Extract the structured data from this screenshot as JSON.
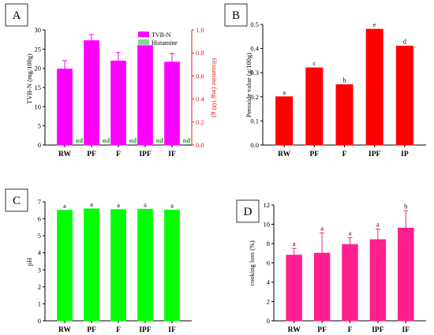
{
  "chart_data": [
    {
      "panel": "A",
      "type": "bar",
      "categories": [
        "RW",
        "PF",
        "F",
        "IPF",
        "IF"
      ],
      "ylabel": "TVB-N (mg/100g)",
      "y2label": "Histamine (mg/100 g)",
      "ylim": [
        0,
        30
      ],
      "y2lim": [
        0,
        1.0
      ],
      "yticks": [
        "0",
        "5",
        "10",
        "15",
        "20",
        "25",
        "30"
      ],
      "y2ticks": [
        "0.0",
        "0.2",
        "0.4",
        "0.6",
        "0.8",
        "1.0"
      ],
      "legend_position": "top-right",
      "series": [
        {
          "name": "TVB-N",
          "color": "#ff00ff",
          "values": [
            19.8,
            27.2,
            21.9,
            25.9,
            21.6
          ],
          "errors": [
            2.2,
            1.6,
            2.2,
            0.0,
            2.3
          ]
        },
        {
          "name": "Histamine",
          "color": "#8fd19e",
          "values": [
            0,
            0,
            0,
            0,
            0
          ]
        }
      ],
      "annotations": [
        "nd",
        "nd",
        "nd",
        "nd",
        "nd"
      ],
      "annotation_color": "#2ca02c",
      "y2_color": "#e41a1c"
    },
    {
      "panel": "B",
      "type": "bar",
      "categories": [
        "RW",
        "PF",
        "F",
        "IPF",
        "IP"
      ],
      "ylabel": "Peroxide value (g/100g)",
      "ylim": [
        0,
        0.5
      ],
      "yticks": [
        "0.0",
        "0.1",
        "0.2",
        "0.3",
        "0.4",
        "0.5"
      ],
      "series": [
        {
          "color": "#ff0000",
          "values": [
            0.2,
            0.32,
            0.25,
            0.48,
            0.41
          ]
        }
      ],
      "letters": [
        "a",
        "c",
        "b",
        "e",
        "d"
      ]
    },
    {
      "panel": "C",
      "type": "bar",
      "categories": [
        "RW",
        "PF",
        "F",
        "IPF",
        "IF"
      ],
      "ylabel": "pH",
      "ylim": [
        0,
        7
      ],
      "yticks": [
        "0",
        "1",
        "2",
        "3",
        "4",
        "5",
        "6",
        "7"
      ],
      "series": [
        {
          "color": "#00ff00",
          "values": [
            6.5,
            6.58,
            6.54,
            6.56,
            6.51
          ]
        }
      ],
      "letters": [
        "a",
        "a",
        "a",
        "a",
        "a"
      ]
    },
    {
      "panel": "D",
      "type": "bar",
      "categories": [
        "RW",
        "PF",
        "F",
        "IPF",
        "IF"
      ],
      "ylabel": "cooking loss (%)",
      "ylim": [
        0,
        12
      ],
      "yticks": [
        "0",
        "2",
        "4",
        "6",
        "8",
        "10",
        "12"
      ],
      "series": [
        {
          "color": "#ff1f8e",
          "values": [
            6.8,
            7.0,
            7.9,
            8.4,
            9.6
          ],
          "errors": [
            0.7,
            2.1,
            0.7,
            1.1,
            1.8
          ]
        }
      ],
      "letters": [
        "a",
        "a",
        "a",
        "a",
        "b"
      ]
    }
  ]
}
